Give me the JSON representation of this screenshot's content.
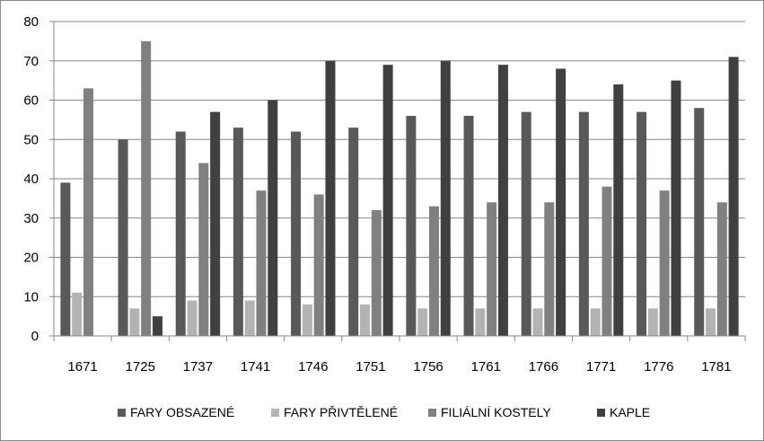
{
  "chart_data": {
    "type": "bar",
    "categories": [
      "1671",
      "1725",
      "1737",
      "1741",
      "1746",
      "1751",
      "1756",
      "1761",
      "1766",
      "1771",
      "1776",
      "1781"
    ],
    "series": [
      {
        "name": "FARY OBSAZENÉ",
        "color": "#595959",
        "values": [
          39,
          50,
          52,
          53,
          52,
          53,
          56,
          56,
          57,
          57,
          57,
          58
        ]
      },
      {
        "name": "FARY PŘIVTĚLENÉ",
        "color": "#b3b3b3",
        "values": [
          11,
          7,
          9,
          9,
          8,
          8,
          7,
          7,
          7,
          7,
          7,
          7
        ]
      },
      {
        "name": "FILIÁLNÍ KOSTELY",
        "color": "#808080",
        "values": [
          63,
          75,
          44,
          37,
          36,
          32,
          33,
          34,
          34,
          38,
          37,
          34
        ]
      },
      {
        "name": "KAPLE",
        "color": "#404040",
        "values": [
          null,
          5,
          57,
          60,
          70,
          69,
          70,
          69,
          68,
          64,
          65,
          71
        ]
      }
    ],
    "ylim": [
      0,
      80
    ],
    "yticks": [
      0,
      10,
      20,
      30,
      40,
      50,
      60,
      70,
      80
    ],
    "grid": true,
    "legend": "bottom"
  }
}
